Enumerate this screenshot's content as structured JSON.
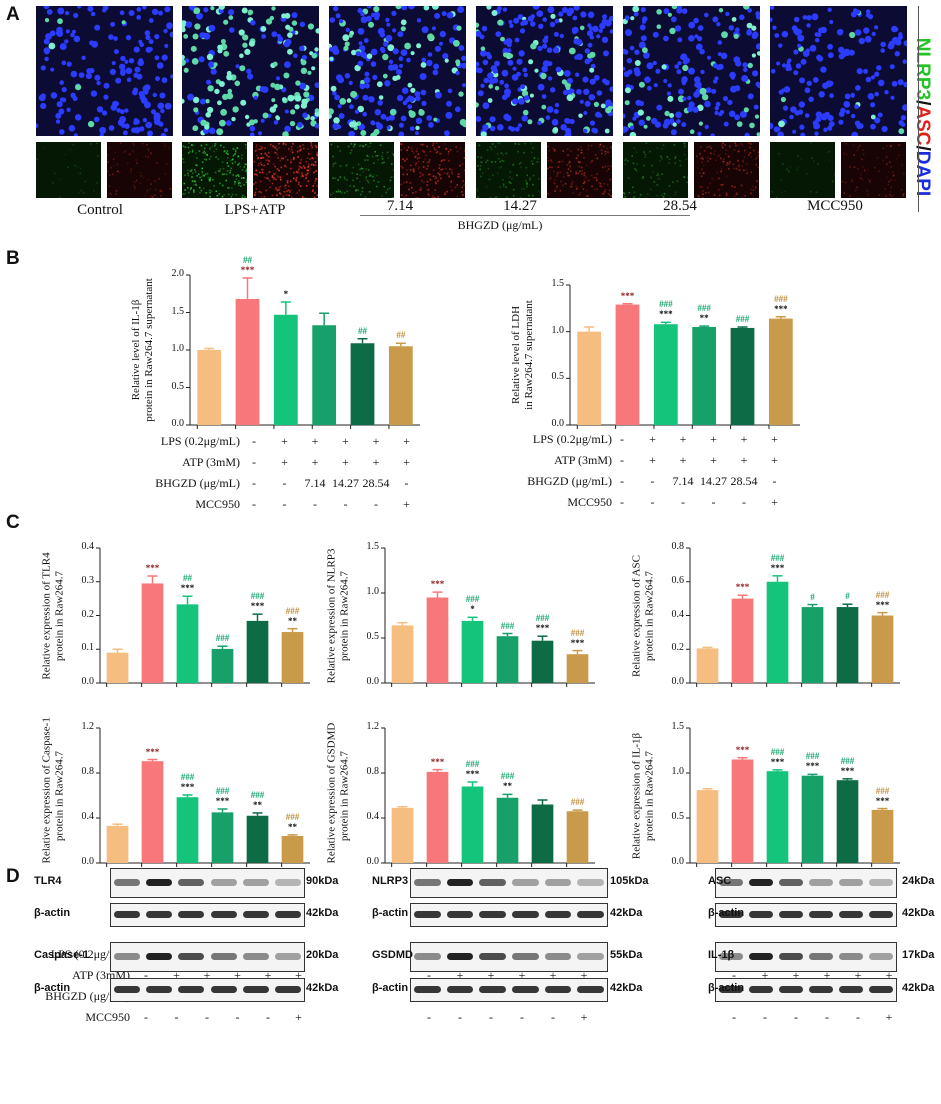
{
  "panels": {
    "A": "A",
    "B": "B",
    "C": "C",
    "D": "D"
  },
  "panelA": {
    "side_label_green": "NLRP3",
    "side_label_sep1": "/",
    "side_label_red": "ASC",
    "side_label_sep2": "/",
    "side_label_blue": "DAPI",
    "groups": [
      {
        "label": "Control"
      },
      {
        "label": "LPS+ATP"
      },
      {
        "label": "7.14"
      },
      {
        "label": "14.27"
      },
      {
        "label": "28.54"
      },
      {
        "label": "MCC950"
      }
    ],
    "bhgzd_label": "BHGZD (μg/mL)"
  },
  "colors": [
    "#f5bd7f",
    "#f7777a",
    "#14c47a",
    "#17a06a",
    "#0d6b45",
    "#c99a4a"
  ],
  "sig_colors": {
    "dark": "#8b1a1a",
    "green": "#1aa870",
    "gold": "#c09040",
    "black": "#111111"
  },
  "chart_data": [
    {
      "type": "bar",
      "panel": "B",
      "ylabel": "Relative level of IL-1β protein in Raw264.7 supernatant",
      "ylim": [
        0,
        2.0
      ],
      "yticks": [
        "0.0",
        "0.5",
        "1.0",
        "1.5",
        "2.0"
      ],
      "values": [
        1.0,
        1.68,
        1.47,
        1.33,
        1.09,
        1.05
      ],
      "errors": [
        0.02,
        0.28,
        0.17,
        0.16,
        0.06,
        0.04
      ],
      "sig_top": [
        "",
        "##",
        "",
        "",
        "",
        ""
      ],
      "sig_bottom": [
        "",
        "***",
        "*",
        "",
        "##",
        "##"
      ]
    },
    {
      "type": "bar",
      "panel": "B",
      "ylabel": "Relative level of LDH in Raw264.7 supernatant",
      "ylim": [
        0,
        1.5
      ],
      "yticks": [
        "0.0",
        "0.5",
        "1.0",
        "1.5"
      ],
      "values": [
        1.0,
        1.29,
        1.08,
        1.05,
        1.04,
        1.14
      ],
      "errors": [
        0.05,
        0.01,
        0.02,
        0.01,
        0.01,
        0.02
      ],
      "sig_top": [
        "",
        "",
        "###",
        "###",
        "",
        "###"
      ],
      "sig_bottom": [
        "",
        "***",
        "***",
        "**",
        "###",
        "***"
      ]
    },
    {
      "type": "bar",
      "panel": "C",
      "ylabel": "Relative expression of TLR4 protein in Raw264.7",
      "ylim": [
        0,
        0.4
      ],
      "yticks": [
        "0.0",
        "0.1",
        "0.2",
        "0.3",
        "0.4"
      ],
      "values": [
        0.09,
        0.295,
        0.233,
        0.101,
        0.184,
        0.151
      ],
      "errors": [
        0.01,
        0.022,
        0.024,
        0.008,
        0.02,
        0.01
      ],
      "sig_top": [
        "",
        "",
        "##",
        "",
        "###",
        "###"
      ],
      "sig_bottom": [
        "",
        "***",
        "***",
        "###",
        "***",
        "**"
      ]
    },
    {
      "type": "bar",
      "panel": "C",
      "ylabel": "Relative expression of NLRP3 protein in Raw264.7",
      "ylim": [
        0,
        1.5
      ],
      "yticks": [
        "0.0",
        "0.5",
        "1.0",
        "1.5"
      ],
      "values": [
        0.64,
        0.95,
        0.69,
        0.52,
        0.47,
        0.32
      ],
      "errors": [
        0.03,
        0.06,
        0.04,
        0.03,
        0.05,
        0.04
      ],
      "sig_top": [
        "",
        "",
        "###",
        "",
        "###",
        "###"
      ],
      "sig_bottom": [
        "",
        "***",
        "*",
        "###",
        "***",
        "***"
      ]
    },
    {
      "type": "bar",
      "panel": "C",
      "ylabel": "Relative expression of ASC protein in Raw264.7",
      "ylim": [
        0,
        0.8
      ],
      "yticks": [
        "0.0",
        "0.2",
        "0.4",
        "0.6",
        "0.8"
      ],
      "values": [
        0.205,
        0.5,
        0.6,
        0.45,
        0.45,
        0.4
      ],
      "errors": [
        0.006,
        0.02,
        0.035,
        0.015,
        0.017,
        0.017
      ],
      "sig_top": [
        "",
        "",
        "###",
        "",
        "",
        "###"
      ],
      "sig_bottom": [
        "",
        "***",
        "***",
        "#",
        "#",
        "***"
      ]
    },
    {
      "type": "bar",
      "panel": "C",
      "ylabel": "Relative expression of Caspase-1 protein in Raw264.7",
      "ylim": [
        0,
        1.2
      ],
      "yticks": [
        "0.0",
        "0.4",
        "0.8",
        "1.2"
      ],
      "values": [
        0.33,
        0.905,
        0.585,
        0.45,
        0.42,
        0.24
      ],
      "errors": [
        0.015,
        0.015,
        0.02,
        0.03,
        0.025,
        0.01
      ],
      "sig_top": [
        "",
        "",
        "###",
        "###",
        "###",
        "###"
      ],
      "sig_bottom": [
        "",
        "***",
        "***",
        "***",
        "**",
        "**"
      ]
    },
    {
      "type": "bar",
      "panel": "C",
      "ylabel": "Relative expression of GSDMD protein in Raw264.7",
      "ylim": [
        0,
        1.2
      ],
      "yticks": [
        "0.0",
        "0.4",
        "0.8",
        "1.2"
      ],
      "values": [
        0.49,
        0.81,
        0.68,
        0.58,
        0.52,
        0.46
      ],
      "errors": [
        0.01,
        0.02,
        0.04,
        0.03,
        0.04,
        0.01
      ],
      "sig_top": [
        "",
        "",
        "###",
        "###",
        "",
        ""
      ],
      "sig_bottom": [
        "",
        "***",
        "***",
        "**",
        "",
        "###"
      ]
    },
    {
      "type": "bar",
      "panel": "C",
      "ylabel": "Relative expression of IL-1β protein in Raw264.7",
      "ylim": [
        0,
        1.5
      ],
      "yticks": [
        "0.0",
        "0.5",
        "1.0",
        "1.5"
      ],
      "values": [
        0.81,
        1.15,
        1.02,
        0.97,
        0.92,
        0.59
      ],
      "errors": [
        0.015,
        0.02,
        0.015,
        0.015,
        0.015,
        0.015
      ],
      "sig_top": [
        "",
        "",
        "###",
        "###",
        "###",
        "###"
      ],
      "sig_bottom": [
        "",
        "***",
        "***",
        "***",
        "***",
        "***"
      ]
    }
  ],
  "conditions": {
    "labels": [
      "LPS (0.2μg/mL)",
      "ATP (3mM)",
      "BHGZD (μg/mL)",
      "MCC950"
    ],
    "rows": [
      [
        "-",
        "+",
        "+",
        "+",
        "+",
        "+"
      ],
      [
        "-",
        "+",
        "+",
        "+",
        "+",
        "+"
      ],
      [
        "-",
        "-",
        "7.14",
        "14.27",
        "28.54",
        "-"
      ],
      [
        "-",
        "-",
        "-",
        "-",
        "-",
        "+"
      ]
    ]
  },
  "blots": {
    "col1": [
      {
        "label": "TLR4",
        "kda": "90kDa"
      },
      {
        "label": "β-actin",
        "kda": "42kDa"
      },
      {
        "label": "Caspase-1",
        "kda": "20kDa"
      },
      {
        "label": "β-actin",
        "kda": "42kDa"
      }
    ],
    "col2": [
      {
        "label": "NLRP3",
        "kda": "105kDa"
      },
      {
        "label": "β-actin",
        "kda": "42kDa"
      },
      {
        "label": "GSDMD",
        "kda": "55kDa"
      },
      {
        "label": "β-actin",
        "kda": "42kDa"
      }
    ],
    "col3": [
      {
        "label": "ASC",
        "kda": "24kDa"
      },
      {
        "label": "β-actin",
        "kda": "42kDa"
      },
      {
        "label": "IL-1β",
        "kda": "17kDa"
      },
      {
        "label": "β-actin",
        "kda": "42kDa"
      }
    ]
  }
}
